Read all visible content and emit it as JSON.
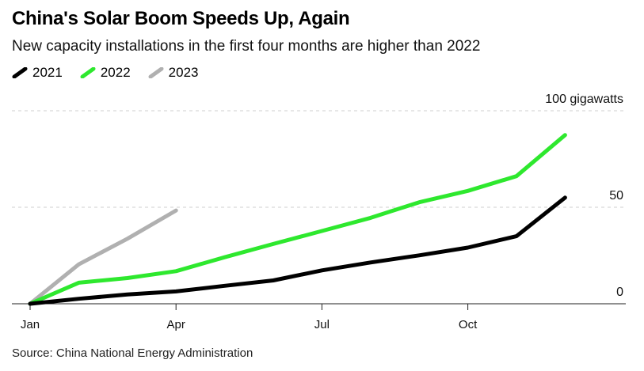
{
  "title": "China's Solar Boom Speeds Up, Again",
  "subtitle": "New capacity installations in the first four months are higher than 2022",
  "source": "Source: China National Energy Administration",
  "colors": {
    "2021": "#000000",
    "2022": "#2ee82e",
    "2023": "#b0b0b0"
  },
  "chart_data": {
    "type": "line",
    "ylabel": "100 gigawatts",
    "ylim": [
      0,
      100
    ],
    "yticks": [
      {
        "value": 100,
        "label": "100 gigawatts"
      },
      {
        "value": 50,
        "label": "50"
      },
      {
        "value": 0,
        "label": "0"
      }
    ],
    "xticks": [
      {
        "value": 0,
        "label": "Jan"
      },
      {
        "value": 3,
        "label": "Apr"
      },
      {
        "value": 6,
        "label": "Jul"
      },
      {
        "value": 9,
        "label": "Oct"
      }
    ],
    "xlim": [
      0,
      12
    ],
    "grid": true,
    "legend": "top-left",
    "series": [
      {
        "name": "2021",
        "color": "#000000",
        "points": [
          [
            0,
            0
          ],
          [
            1,
            2.6
          ],
          [
            2,
            4.8
          ],
          [
            3,
            6.4
          ],
          [
            4,
            9.3
          ],
          [
            5,
            12.1
          ],
          [
            6,
            17.3
          ],
          [
            7,
            21.4
          ],
          [
            8,
            25.1
          ],
          [
            9,
            29.1
          ],
          [
            10,
            35.0
          ],
          [
            11,
            55.0
          ]
        ]
      },
      {
        "name": "2022",
        "color": "#2ee82e",
        "points": [
          [
            0,
            0
          ],
          [
            1,
            10.9
          ],
          [
            2,
            13.3
          ],
          [
            3,
            16.9
          ],
          [
            4,
            24.1
          ],
          [
            5,
            31.0
          ],
          [
            6,
            37.7
          ],
          [
            7,
            44.5
          ],
          [
            8,
            52.6
          ],
          [
            9,
            58.5
          ],
          [
            10,
            66.1
          ],
          [
            11,
            87.4
          ]
        ]
      },
      {
        "name": "2023",
        "color": "#b0b0b0",
        "points": [
          [
            0,
            0
          ],
          [
            1,
            20.4
          ],
          [
            2,
            33.7
          ],
          [
            3,
            48.3
          ]
        ]
      }
    ]
  }
}
